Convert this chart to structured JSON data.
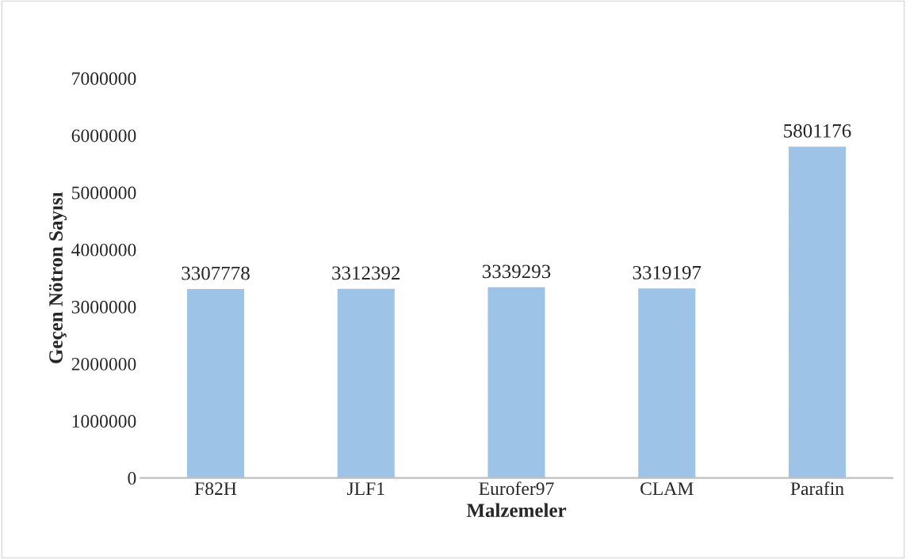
{
  "chart_data": {
    "type": "bar",
    "xlabel": "Malzemeler",
    "ylabel": "Geçen Nötron Sayısı",
    "categories": [
      "F82H",
      "JLF1",
      "Eurofer97",
      "CLAM",
      "Parafin"
    ],
    "values": [
      3307778,
      3312392,
      3339293,
      3319197,
      5801176
    ],
    "color": "#9dc3e6",
    "ylim": [
      0,
      7000000
    ],
    "yticks": [
      0,
      1000000,
      2000000,
      3000000,
      4000000,
      5000000,
      6000000,
      7000000
    ],
    "grid": false,
    "data_labels": true
  }
}
